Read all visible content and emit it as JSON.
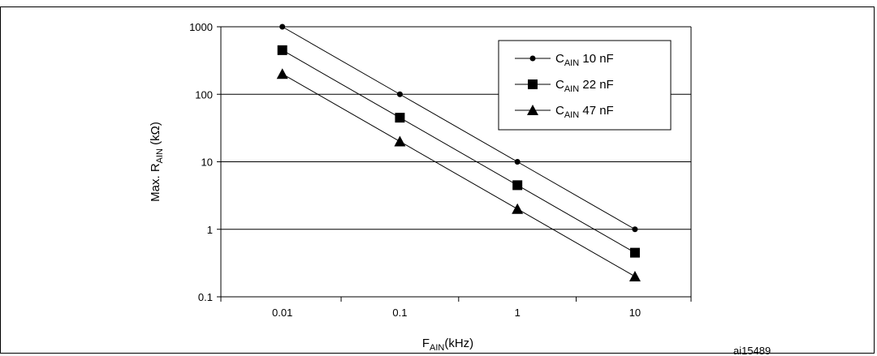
{
  "figure_id": "ai15489",
  "chart_data": {
    "type": "line",
    "x_scale": "log",
    "y_scale": "log",
    "xlim": [
      0.003,
      30
    ],
    "ylim": [
      0.1,
      1000
    ],
    "x_ticks": [
      0.01,
      0.1,
      1,
      10
    ],
    "x_tick_labels": [
      "0.01",
      "0.1",
      "1",
      "10"
    ],
    "y_ticks": [
      0.1,
      1,
      10,
      100,
      1000
    ],
    "y_tick_labels": [
      "0.1",
      "1",
      "10",
      "100",
      "1000"
    ],
    "xlabel": {
      "main": "F",
      "sub": "AIN",
      "tail": "(kHz)"
    },
    "ylabel": {
      "main": "Max. R",
      "sub": "AIN",
      "tail": " (kΩ)"
    },
    "grid": "horizontal major lines",
    "legend_position": "top-right",
    "series": [
      {
        "name": "C_AIN 10 nF",
        "label": {
          "main": "C",
          "sub": "AIN",
          "tail": " 10 nF"
        },
        "marker": "circle",
        "x": [
          0.01,
          0.1,
          1,
          10
        ],
        "y": [
          1000,
          100,
          10,
          1
        ]
      },
      {
        "name": "C_AIN 22 nF",
        "label": {
          "main": "C",
          "sub": "AIN",
          "tail": " 22 nF"
        },
        "marker": "square",
        "x": [
          0.01,
          0.1,
          1,
          10
        ],
        "y": [
          450,
          45,
          4.5,
          0.45
        ]
      },
      {
        "name": "C_AIN 47 nF",
        "label": {
          "main": "C",
          "sub": "AIN",
          "tail": " 47 nF"
        },
        "marker": "triangle",
        "x": [
          0.01,
          0.1,
          1,
          10
        ],
        "y": [
          200,
          20,
          2,
          0.2
        ]
      }
    ],
    "colors": {
      "line": "#000000",
      "grid": "#000000",
      "background": "#ffffff"
    }
  }
}
